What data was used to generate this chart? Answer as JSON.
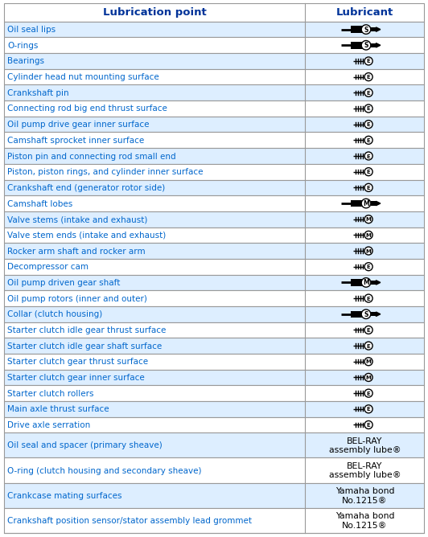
{
  "title_left": "Lubrication point",
  "title_right": "Lubricant",
  "header_color": "#003399",
  "text_color_blue": "#0066cc",
  "text_color_black": "#000000",
  "bg_color": "#ffffff",
  "border_color": "#999999",
  "rows": [
    {
      "point": "Oil seal lips",
      "lube_type": "LS_big",
      "lube_text": ""
    },
    {
      "point": "O-rings",
      "lube_type": "LS_big",
      "lube_text": ""
    },
    {
      "point": "Bearings",
      "lube_type": "E_small",
      "lube_text": ""
    },
    {
      "point": "Cylinder head nut mounting surface",
      "lube_type": "E_small",
      "lube_text": ""
    },
    {
      "point": "Crankshaft pin",
      "lube_type": "E_small",
      "lube_text": ""
    },
    {
      "point": "Connecting rod big end thrust surface",
      "lube_type": "E_small",
      "lube_text": ""
    },
    {
      "point": "Oil pump drive gear inner surface",
      "lube_type": "E_small",
      "lube_text": ""
    },
    {
      "point": "Camshaft sprocket inner surface",
      "lube_type": "E_small",
      "lube_text": ""
    },
    {
      "point": "Piston pin and connecting rod small end",
      "lube_type": "E_small",
      "lube_text": ""
    },
    {
      "point": "Piston, piston rings, and cylinder inner surface",
      "lube_type": "E_small",
      "lube_text": ""
    },
    {
      "point": "Crankshaft end (generator rotor side)",
      "lube_type": "E_small",
      "lube_text": ""
    },
    {
      "point": "Camshaft lobes",
      "lube_type": "M_big",
      "lube_text": ""
    },
    {
      "point": "Valve stems (intake and exhaust)",
      "lube_type": "M_small",
      "lube_text": ""
    },
    {
      "point": "Valve stem ends (intake and exhaust)",
      "lube_type": "M_small",
      "lube_text": ""
    },
    {
      "point": "Rocker arm shaft and rocker arm",
      "lube_type": "M_small",
      "lube_text": ""
    },
    {
      "point": "Decompressor cam",
      "lube_type": "E_small",
      "lube_text": ""
    },
    {
      "point": "Oil pump driven gear shaft",
      "lube_type": "M_big",
      "lube_text": ""
    },
    {
      "point": "Oil pump rotors (inner and outer)",
      "lube_type": "E_small",
      "lube_text": ""
    },
    {
      "point": "Collar (clutch housing)",
      "lube_type": "LS_big",
      "lube_text": ""
    },
    {
      "point": "Starter clutch idle gear thrust surface",
      "lube_type": "E_small",
      "lube_text": ""
    },
    {
      "point": "Starter clutch idle gear shaft surface",
      "lube_type": "E_small",
      "lube_text": ""
    },
    {
      "point": "Starter clutch gear thrust surface",
      "lube_type": "M_small",
      "lube_text": ""
    },
    {
      "point": "Starter clutch gear inner surface",
      "lube_type": "M_small",
      "lube_text": ""
    },
    {
      "point": "Starter clutch rollers",
      "lube_type": "E_small",
      "lube_text": ""
    },
    {
      "point": "Main axle thrust surface",
      "lube_type": "E_small",
      "lube_text": ""
    },
    {
      "point": "Drive axle serration",
      "lube_type": "E_small",
      "lube_text": ""
    },
    {
      "point": "Oil seal and spacer (primary sheave)",
      "lube_type": "text",
      "lube_text": "BEL-RAY\nassembly lube®"
    },
    {
      "point": "O-ring (clutch housing and secondary sheave)",
      "lube_type": "text",
      "lube_text": "BEL-RAY\nassembly lube®"
    },
    {
      "point": "Crankcase mating surfaces",
      "lube_type": "text",
      "lube_text": "Yamaha bond\nNo.1215®"
    },
    {
      "point": "Crankshaft position sensor/stator assembly lead grommet",
      "lube_type": "text",
      "lube_text": "Yamaha bond\nNo.1215®"
    }
  ]
}
